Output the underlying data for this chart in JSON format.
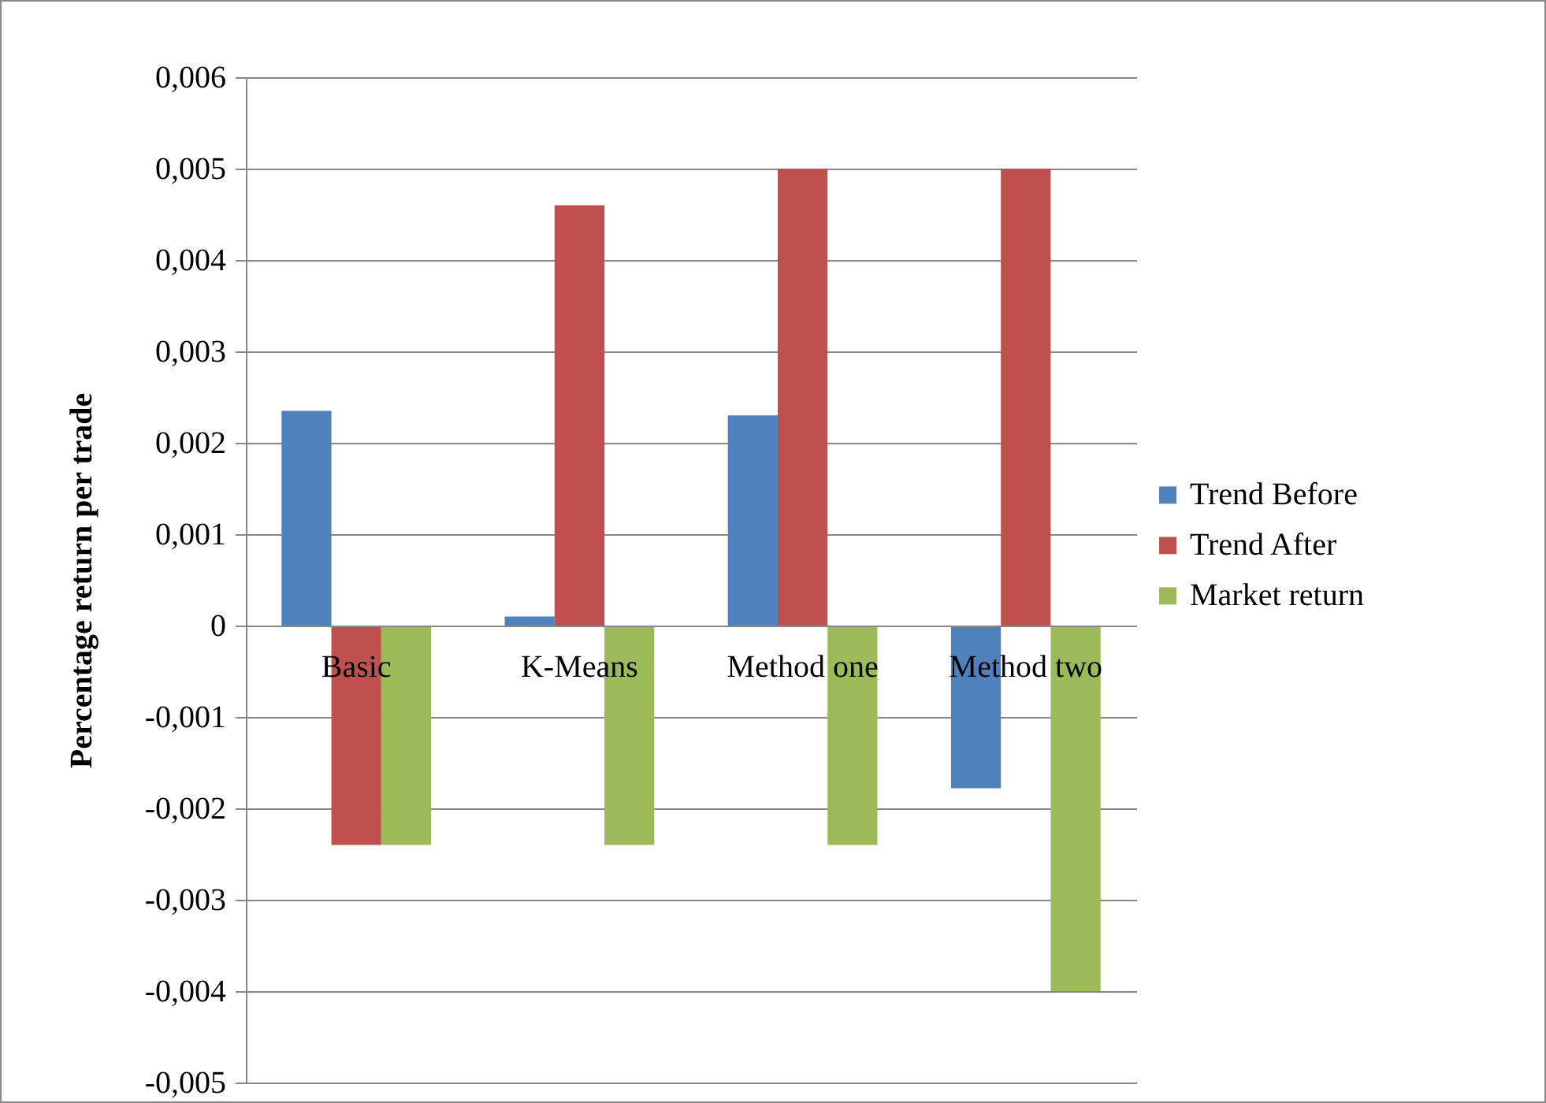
{
  "chart_data": {
    "type": "bar",
    "ylabel": "Percentage return per trade",
    "categories": [
      "Basic",
      "K-Means",
      "Method one",
      "Method two"
    ],
    "series": [
      {
        "name": "Trend Before",
        "color": "#4f81bd",
        "values": [
          0.00235,
          0.0001,
          0.0023,
          -0.00178
        ]
      },
      {
        "name": "Trend After",
        "color": "#c0504d",
        "values": [
          -0.0024,
          0.0046,
          0.005,
          0.005
        ]
      },
      {
        "name": "Market return",
        "color": "#9bbb59",
        "values": [
          -0.0024,
          -0.0024,
          -0.0024,
          -0.004
        ]
      }
    ],
    "ylim": [
      -0.005,
      0.006
    ],
    "yticks": [
      {
        "value": -0.005,
        "label": "-0,005"
      },
      {
        "value": -0.004,
        "label": "-0,004"
      },
      {
        "value": -0.003,
        "label": "-0,003"
      },
      {
        "value": -0.002,
        "label": "-0,002"
      },
      {
        "value": -0.001,
        "label": "-0,001"
      },
      0,
      {
        "value": 0.001,
        "label": "0,001"
      },
      {
        "value": 0.002,
        "label": "0,002"
      },
      {
        "value": 0.003,
        "label": "0,003"
      },
      {
        "value": 0.004,
        "label": "0,004"
      },
      {
        "value": 0.005,
        "label": "0,005"
      },
      {
        "value": 0.006,
        "label": "0,006"
      }
    ],
    "grid": "y",
    "legend": "right"
  }
}
